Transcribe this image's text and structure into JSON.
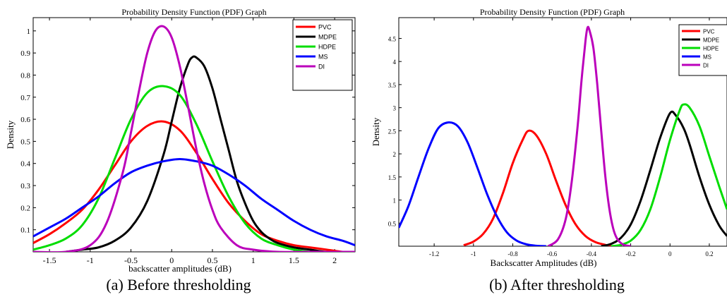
{
  "panels": [
    {
      "caption": "(a) Before thresholding",
      "chart_data": {
        "type": "line",
        "title": "Probability Density Function (PDF) Graph",
        "xlabel": "backscatter amplitudes (dB)",
        "ylabel": "Density",
        "xlim": [
          -1.7,
          2.25
        ],
        "ylim": [
          0,
          1.06
        ],
        "xticks": [
          -1.5,
          -1,
          -0.5,
          0,
          0.5,
          1,
          1.5,
          2
        ],
        "xtick_labels": [
          "-1.5",
          "-1",
          "-0.5",
          "0",
          "0.5",
          "1",
          "1.5",
          "2"
        ],
        "yticks": [
          0.1,
          0.2,
          0.3,
          0.4,
          0.5,
          0.6,
          0.7,
          0.8,
          0.9,
          1
        ],
        "ytick_labels": [
          "0.1",
          "0.2",
          "0.3",
          "0.4",
          "0.5",
          "0.6",
          "0.7",
          "0.8",
          "0.9",
          "1"
        ],
        "legend": "top-right",
        "grid": false,
        "series": [
          {
            "name": "PVC",
            "color": "#ff0000",
            "x": [
              -1.7,
              -1.5,
              -1.3,
              -1.1,
              -0.9,
              -0.7,
              -0.5,
              -0.3,
              -0.1,
              0.1,
              0.3,
              0.5,
              0.7,
              0.9,
              1.1,
              1.3,
              1.5,
              1.7,
              1.9,
              2.1,
              2.25
            ],
            "y": [
              0.04,
              0.08,
              0.13,
              0.19,
              0.28,
              0.39,
              0.5,
              0.57,
              0.59,
              0.55,
              0.45,
              0.33,
              0.22,
              0.14,
              0.08,
              0.05,
              0.03,
              0.02,
              0.01,
              0.0,
              0.0
            ]
          },
          {
            "name": "MDPE",
            "color": "#000000",
            "x": [
              -1.3,
              -1.1,
              -0.9,
              -0.7,
              -0.5,
              -0.3,
              -0.1,
              0.0,
              0.1,
              0.2,
              0.25,
              0.3,
              0.4,
              0.5,
              0.6,
              0.7,
              0.8,
              0.9,
              1.0,
              1.1,
              1.2,
              1.3,
              1.5,
              1.7,
              1.9,
              2.25
            ],
            "y": [
              0.0,
              0.01,
              0.02,
              0.05,
              0.11,
              0.23,
              0.44,
              0.59,
              0.74,
              0.85,
              0.88,
              0.88,
              0.84,
              0.74,
              0.6,
              0.46,
              0.32,
              0.22,
              0.14,
              0.09,
              0.06,
              0.04,
              0.02,
              0.01,
              0.0,
              0.0
            ]
          },
          {
            "name": "HDPE",
            "color": "#00dd00",
            "x": [
              -1.7,
              -1.5,
              -1.3,
              -1.1,
              -0.9,
              -0.7,
              -0.5,
              -0.3,
              -0.1,
              0.1,
              0.3,
              0.5,
              0.7,
              0.9,
              1.1,
              1.3,
              1.5,
              1.7,
              1.9,
              2.1,
              2.25
            ],
            "y": [
              0.01,
              0.03,
              0.06,
              0.12,
              0.24,
              0.42,
              0.6,
              0.72,
              0.75,
              0.71,
              0.58,
              0.41,
              0.25,
              0.13,
              0.06,
              0.03,
              0.01,
              0.0,
              0.0,
              0.0,
              0.0
            ]
          },
          {
            "name": "MS",
            "color": "#0000ff",
            "x": [
              -1.7,
              -1.5,
              -1.3,
              -1.1,
              -0.9,
              -0.7,
              -0.5,
              -0.3,
              -0.1,
              0.1,
              0.3,
              0.5,
              0.7,
              0.9,
              1.1,
              1.3,
              1.5,
              1.7,
              1.9,
              2.1,
              2.25
            ],
            "y": [
              0.07,
              0.11,
              0.15,
              0.2,
              0.25,
              0.31,
              0.36,
              0.39,
              0.41,
              0.42,
              0.41,
              0.39,
              0.35,
              0.3,
              0.24,
              0.19,
              0.14,
              0.1,
              0.07,
              0.05,
              0.03
            ]
          },
          {
            "name": "DI",
            "color": "#bb00bb",
            "x": [
              -1.7,
              -1.3,
              -1.0,
              -0.8,
              -0.6,
              -0.5,
              -0.4,
              -0.3,
              -0.2,
              -0.1,
              0.0,
              0.1,
              0.2,
              0.3,
              0.4,
              0.5,
              0.6,
              0.8,
              1.0,
              1.3,
              1.7,
              2.25
            ],
            "y": [
              0.0,
              0.0,
              0.03,
              0.13,
              0.36,
              0.54,
              0.73,
              0.9,
              1.0,
              1.02,
              0.97,
              0.84,
              0.66,
              0.47,
              0.31,
              0.19,
              0.11,
              0.03,
              0.01,
              0.0,
              0.0,
              0.0
            ]
          }
        ]
      }
    },
    {
      "caption": "(b) After thresholding",
      "chart_data": {
        "type": "line",
        "title": "Probability Density Function (PDF) Graph",
        "xlabel": "Backscatter Amplitudes (dB)",
        "ylabel": "Density",
        "xlim": [
          -1.38,
          0.29
        ],
        "ylim": [
          0,
          4.95
        ],
        "xticks": [
          -1.2,
          -1,
          -0.8,
          -0.6,
          -0.4,
          -0.2,
          0,
          0.2
        ],
        "xtick_labels": [
          "-1.2",
          "-1",
          "-0.8",
          "-0.6",
          "-0.4",
          "-0.2",
          "0",
          "0.2"
        ],
        "yticks": [
          0.5,
          1,
          1.5,
          2,
          2.5,
          3,
          3.5,
          4,
          4.5
        ],
        "ytick_labels": [
          "0.5",
          "1",
          "1.5",
          "2",
          "2.5",
          "3",
          "3.5",
          "4",
          "4.5"
        ],
        "legend": "top-right",
        "grid": false,
        "series": [
          {
            "name": "PVC",
            "color": "#ff0000",
            "x": [
              -1.05,
              -1.0,
              -0.95,
              -0.9,
              -0.85,
              -0.8,
              -0.75,
              -0.72,
              -0.68,
              -0.63,
              -0.58,
              -0.53,
              -0.48,
              -0.43,
              -0.38,
              -0.33,
              -0.3
            ],
            "y": [
              0.02,
              0.1,
              0.27,
              0.6,
              1.15,
              1.8,
              2.3,
              2.5,
              2.4,
              2.0,
              1.42,
              0.88,
              0.47,
              0.22,
              0.09,
              0.03,
              0.0
            ]
          },
          {
            "name": "MDPE",
            "color": "#000000",
            "x": [
              -0.35,
              -0.3,
              -0.25,
              -0.2,
              -0.15,
              -0.1,
              -0.05,
              0.0,
              0.03,
              0.07,
              0.1,
              0.15,
              0.2,
              0.25,
              0.29
            ],
            "y": [
              0.0,
              0.05,
              0.18,
              0.47,
              0.98,
              1.65,
              2.35,
              2.88,
              2.83,
              2.55,
              2.2,
              1.5,
              0.9,
              0.45,
              0.22
            ]
          },
          {
            "name": "HDPE",
            "color": "#00dd00",
            "x": [
              -0.3,
              -0.25,
              -0.2,
              -0.15,
              -0.1,
              -0.05,
              0.0,
              0.05,
              0.07,
              0.1,
              0.15,
              0.2,
              0.25,
              0.29
            ],
            "y": [
              0.0,
              0.03,
              0.12,
              0.35,
              0.8,
              1.5,
              2.3,
              2.95,
              3.07,
              3.0,
              2.6,
              1.95,
              1.3,
              0.8
            ]
          },
          {
            "name": "MS",
            "color": "#0000ff",
            "x": [
              -1.38,
              -1.33,
              -1.28,
              -1.23,
              -1.18,
              -1.13,
              -1.08,
              -1.03,
              -0.98,
              -0.93,
              -0.88,
              -0.83,
              -0.78,
              -0.73,
              -0.68,
              -0.63
            ],
            "y": [
              0.4,
              0.88,
              1.5,
              2.1,
              2.55,
              2.68,
              2.6,
              2.25,
              1.7,
              1.12,
              0.64,
              0.3,
              0.12,
              0.04,
              0.01,
              0.0
            ]
          },
          {
            "name": "DI",
            "color": "#bb00bb",
            "x": [
              -0.62,
              -0.57,
              -0.53,
              -0.5,
              -0.47,
              -0.45,
              -0.43,
              -0.42,
              -0.41,
              -0.39,
              -0.37,
              -0.35,
              -0.33,
              -0.31,
              -0.29,
              -0.27,
              -0.24,
              -0.2
            ],
            "y": [
              0.0,
              0.15,
              0.6,
              1.4,
              2.6,
              3.6,
              4.45,
              4.73,
              4.68,
              4.3,
              3.5,
              2.5,
              1.55,
              0.85,
              0.4,
              0.17,
              0.04,
              0.0
            ]
          }
        ]
      }
    }
  ]
}
